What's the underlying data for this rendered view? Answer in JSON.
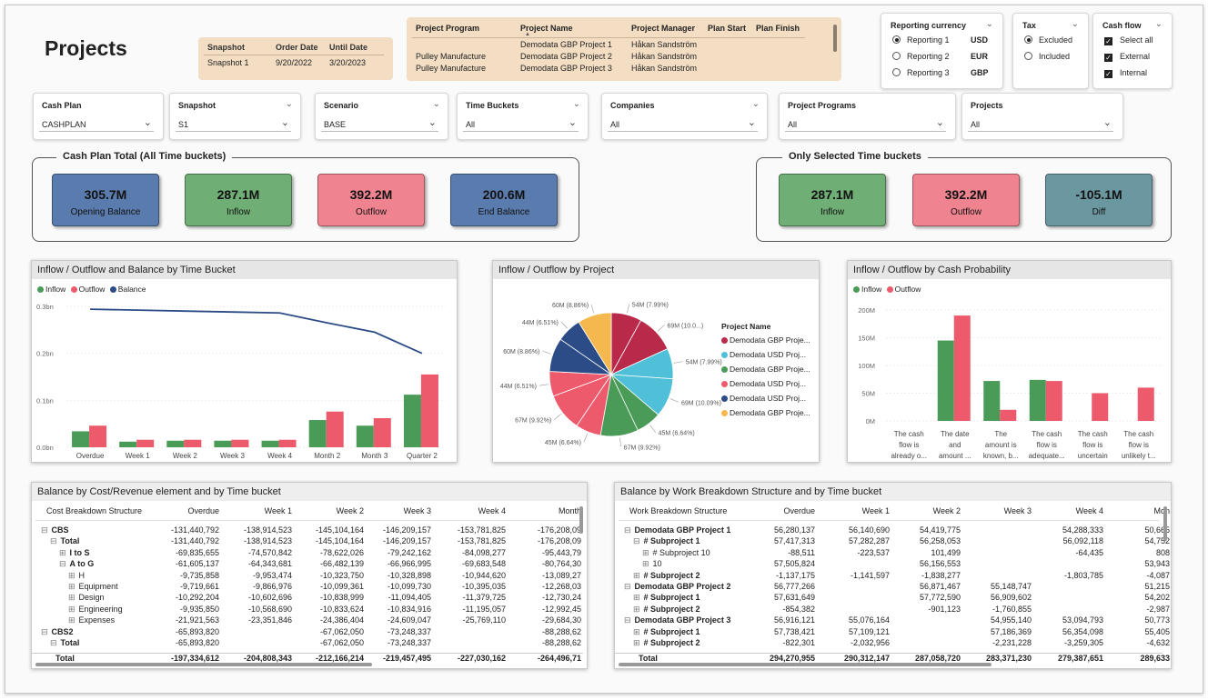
{
  "page_title": "Projects",
  "snapshot_table": {
    "headers": [
      "Snapshot",
      "Order Date",
      "Until Date"
    ],
    "row": [
      "Snapshot 1",
      "9/20/2022",
      "3/20/2023"
    ]
  },
  "project_table": {
    "headers": [
      "Project Program",
      "Project Name",
      "Project Manager",
      "Plan Start",
      "Plan Finish"
    ],
    "rows": [
      [
        "",
        "Demodata GBP Project 1",
        "Håkan Sandström",
        "",
        ""
      ],
      [
        "Pulley Manufacture",
        "Demodata GBP Project 2",
        "Håkan Sandström",
        "",
        ""
      ],
      [
        "Pulley Manufacture",
        "Demodata GBP Project 3",
        "Håkan Sandström",
        "",
        ""
      ]
    ]
  },
  "reporting_currency": {
    "title": "Reporting currency",
    "options": [
      {
        "label": "Reporting 1",
        "currency": "USD",
        "selected": true
      },
      {
        "label": "Reporting 2",
        "currency": "EUR",
        "selected": false
      },
      {
        "label": "Reporting 3",
        "currency": "GBP",
        "selected": false
      }
    ]
  },
  "tax": {
    "title": "Tax",
    "options": [
      {
        "label": "Excluded",
        "selected": true
      },
      {
        "label": "Included",
        "selected": false
      }
    ]
  },
  "cash_flow": {
    "title": "Cash flow",
    "options": [
      {
        "label": "Select all",
        "checked": true
      },
      {
        "label": "External",
        "checked": true
      },
      {
        "label": "Internal",
        "checked": true
      }
    ]
  },
  "filters": [
    {
      "label": "Cash Plan",
      "value": "CASHPLAN"
    },
    {
      "label": "Snapshot",
      "value": "S1"
    },
    {
      "label": "Scenario",
      "value": "BASE"
    },
    {
      "label": "Time Buckets",
      "value": "All"
    },
    {
      "label": "Companies",
      "value": "All"
    },
    {
      "label": "Project Programs",
      "value": "All"
    },
    {
      "label": "Projects",
      "value": "All"
    }
  ],
  "kpi_total": {
    "title": "Cash Plan Total (All Time buckets)",
    "cards": [
      {
        "value": "305.7M",
        "label": "Opening Balance"
      },
      {
        "value": "287.1M",
        "label": "Inflow"
      },
      {
        "value": "392.2M",
        "label": "Outflow"
      },
      {
        "value": "200.6M",
        "label": "End Balance"
      }
    ]
  },
  "kpi_selected": {
    "title": "Only Selected Time buckets",
    "cards": [
      {
        "value": "287.1M",
        "label": "Inflow"
      },
      {
        "value": "392.2M",
        "label": "Outflow"
      },
      {
        "value": "-105.1M",
        "label": "Diff"
      }
    ]
  },
  "colors": {
    "inflow": "#4a9a58",
    "outflow": "#ec5a6c",
    "balance": "#2b4c86"
  },
  "chart_data": [
    {
      "type": "bar",
      "title": "Inflow / Outflow and Balance by Time Bucket",
      "categories": [
        "Overdue",
        "Week 1",
        "Week 2",
        "Week 3",
        "Week 4",
        "Month 2",
        "Month 3",
        "Quarter 2"
      ],
      "series": [
        {
          "name": "Inflow",
          "type": "bar",
          "values": [
            0.034,
            0.012,
            0.014,
            0.014,
            0.014,
            0.058,
            0.046,
            0.112
          ]
        },
        {
          "name": "Outflow",
          "type": "bar",
          "values": [
            0.046,
            0.016,
            0.016,
            0.016,
            0.016,
            0.076,
            0.062,
            0.155
          ]
        },
        {
          "name": "Balance",
          "type": "line",
          "values": [
            0.294,
            0.292,
            0.29,
            0.288,
            0.286,
            0.265,
            0.245,
            0.2
          ]
        }
      ],
      "yticks": [
        "0.0bn",
        "0.1bn",
        "0.2bn",
        "0.3bn"
      ],
      "ylim": [
        0,
        0.3
      ]
    },
    {
      "type": "pie",
      "title": "Inflow / Outflow by Project",
      "legend_title": "Project Name",
      "legend": [
        "Demodata GBP Proje...",
        "Demodata USD Proj...",
        "Demodata GBP Proje...",
        "Demodata USD Proj...",
        "Demodata USD Proj...",
        "Demodata GBP Proje..."
      ],
      "legend_colors": [
        "#b8294a",
        "#4fc0d8",
        "#4a9a58",
        "#ec5a6c",
        "#2b4c86",
        "#f5b84f"
      ],
      "slices": [
        {
          "value": 54,
          "pct": "7.99%",
          "color": "#b8294a",
          "label": "54M (7.99%)"
        },
        {
          "value": 69,
          "pct": "10.0...",
          "color": "#b8294a",
          "label": "69M (10.0...)"
        },
        {
          "value": 54,
          "pct": "7.99%",
          "color": "#4fc0d8",
          "label": "54M (7.99%)"
        },
        {
          "value": 69,
          "pct": "10.09%",
          "color": "#4fc0d8",
          "label": "69M (10.09%)"
        },
        {
          "value": 45,
          "pct": "6.64%",
          "color": "#4a9a58",
          "label": "45M (6.64%)"
        },
        {
          "value": 67,
          "pct": "9.92%",
          "color": "#4a9a58",
          "label": "67M (9.92%)"
        },
        {
          "value": 45,
          "pct": "6.64%",
          "color": "#ec5a6c",
          "label": "45M (6.64%)"
        },
        {
          "value": 67,
          "pct": "9.92%",
          "color": "#ec5a6c",
          "label": "67M (9.92%)"
        },
        {
          "value": 44,
          "pct": "6.51%",
          "color": "#ec5a6c",
          "label": "44M (6.51%)"
        },
        {
          "value": 60,
          "pct": "8.86%",
          "color": "#2b4c86",
          "label": "60M (8.86%)"
        },
        {
          "value": 44,
          "pct": "6.51%",
          "color": "#2b4c86",
          "label": "44M (6.51%)"
        },
        {
          "value": 60,
          "pct": "8.86%",
          "color": "#f5b84f",
          "label": "60M (8.86%)"
        }
      ]
    },
    {
      "type": "bar",
      "title": "Inflow / Outflow by Cash Probability",
      "categories": [
        [
          "The cash",
          "flow is",
          "already o..."
        ],
        [
          "The date",
          "and",
          "amount ..."
        ],
        [
          "The",
          "amount is",
          "known, b..."
        ],
        [
          "The cash",
          "flow is",
          "adequate..."
        ],
        [
          "The cash",
          "flow is",
          "uncertain"
        ],
        [
          "The cash",
          "flow is",
          "unlikely t..."
        ]
      ],
      "series": [
        {
          "name": "Inflow",
          "values": [
            0,
            145,
            72,
            74,
            0,
            0
          ]
        },
        {
          "name": "Outflow",
          "values": [
            0,
            190,
            20,
            72,
            50,
            60
          ]
        }
      ],
      "yticks": [
        "0M",
        "50M",
        "100M",
        "150M",
        "200M"
      ],
      "ylim": [
        0,
        200
      ]
    }
  ],
  "cost_table": {
    "title": "Balance by Cost/Revenue element and by Time bucket",
    "headers": [
      "Cost Breakdown Structure",
      "Overdue",
      "Week 1",
      "Week 2",
      "Week 3",
      "Week 4",
      "Month"
    ],
    "rows": [
      {
        "label": "CBS",
        "indent": 0,
        "exp": "⊟",
        "bold": true,
        "vals": [
          "-131,440,792",
          "-138,914,523",
          "-145,104,164",
          "-146,209,157",
          "-153,781,825",
          "-176,208,09"
        ]
      },
      {
        "label": "Total",
        "indent": 1,
        "exp": "⊟",
        "bold": true,
        "vals": [
          "-131,440,792",
          "-138,914,523",
          "-145,104,164",
          "-146,209,157",
          "-153,781,825",
          "-176,208,09"
        ]
      },
      {
        "label": "I to S",
        "indent": 2,
        "exp": "⊞",
        "bold": true,
        "vals": [
          "-69,835,655",
          "-74,570,842",
          "-78,622,026",
          "-79,242,162",
          "-84,098,277",
          "-95,443,79"
        ]
      },
      {
        "label": "A to G",
        "indent": 2,
        "exp": "⊟",
        "bold": true,
        "vals": [
          "-61,605,137",
          "-64,343,681",
          "-66,482,139",
          "-66,966,995",
          "-69,683,548",
          "-80,764,30"
        ]
      },
      {
        "label": "H",
        "indent": 3,
        "exp": "⊞",
        "bold": false,
        "vals": [
          "-9,735,858",
          "-9,953,474",
          "-10,323,750",
          "-10,328,898",
          "-10,944,620",
          "-13,089,27"
        ]
      },
      {
        "label": "Equipment",
        "indent": 3,
        "exp": "⊞",
        "bold": false,
        "vals": [
          "-9,719,661",
          "-9,866,976",
          "-10,099,361",
          "-10,099,730",
          "-10,395,035",
          "-12,268,03"
        ]
      },
      {
        "label": "Design",
        "indent": 3,
        "exp": "⊞",
        "bold": false,
        "vals": [
          "-10,292,204",
          "-10,602,696",
          "-10,838,999",
          "-11,094,405",
          "-11,379,725",
          "-12,730,24"
        ]
      },
      {
        "label": "Engineering",
        "indent": 3,
        "exp": "⊞",
        "bold": false,
        "vals": [
          "-9,935,850",
          "-10,568,690",
          "-10,833,624",
          "-10,834,916",
          "-11,195,057",
          "-12,992,45"
        ]
      },
      {
        "label": "Expenses",
        "indent": 3,
        "exp": "⊞",
        "bold": false,
        "vals": [
          "-21,921,563",
          "-23,351,846",
          "-24,386,404",
          "-24,609,047",
          "-25,769,110",
          "-29,684,30"
        ]
      },
      {
        "label": "CBS2",
        "indent": 0,
        "exp": "⊟",
        "bold": true,
        "vals": [
          "-65,893,820",
          "",
          "-67,062,050",
          "-73,248,337",
          "",
          "-88,288,62"
        ]
      },
      {
        "label": "Total",
        "indent": 1,
        "exp": "⊟",
        "bold": true,
        "vals": [
          "-65,893,820",
          "",
          "-67,062,050",
          "-73,248,337",
          "",
          "-88,288,62"
        ]
      }
    ],
    "total": {
      "label": "Total",
      "vals": [
        "-197,334,612",
        "-204,808,343",
        "-212,166,214",
        "-219,457,495",
        "-227,030,162",
        "-264,496,71"
      ]
    }
  },
  "wbs_table": {
    "title": "Balance by Work Breakdown Structure and by Time bucket",
    "headers": [
      "Work Breakdown Structure",
      "Overdue",
      "Week 1",
      "Week 2",
      "Week 3",
      "Week 4",
      "Mon"
    ],
    "rows": [
      {
        "label": "Demodata GBP Project 1",
        "indent": 0,
        "exp": "⊟",
        "bold": true,
        "vals": [
          "56,280,137",
          "56,140,690",
          "54,419,775",
          "",
          "54,288,333",
          "50,665"
        ]
      },
      {
        "label": "# Subproject 1",
        "indent": 1,
        "exp": "⊟",
        "bold": true,
        "vals": [
          "57,417,313",
          "57,282,287",
          "56,258,053",
          "",
          "56,092,118",
          "54,752"
        ]
      },
      {
        "label": "# Subproject 10",
        "indent": 2,
        "exp": "⊞",
        "bold": false,
        "vals": [
          "-88,511",
          "-223,537",
          "101,499",
          "",
          "-64,435",
          "808"
        ]
      },
      {
        "label": "10",
        "indent": 2,
        "exp": "⊞",
        "bold": false,
        "vals": [
          "57,505,824",
          "",
          "56,156,553",
          "",
          "",
          "53,943"
        ]
      },
      {
        "label": "# Subproject 2",
        "indent": 1,
        "exp": "⊞",
        "bold": true,
        "vals": [
          "-1,137,175",
          "-1,141,597",
          "-1,838,277",
          "",
          "-1,803,785",
          "-4,087"
        ]
      },
      {
        "label": "Demodata GBP Project 2",
        "indent": 0,
        "exp": "⊟",
        "bold": true,
        "vals": [
          "56,777,266",
          "",
          "56,871,467",
          "55,148,747",
          "",
          "51,215"
        ]
      },
      {
        "label": "# Subproject 1",
        "indent": 1,
        "exp": "⊞",
        "bold": true,
        "vals": [
          "57,631,649",
          "",
          "57,772,590",
          "56,909,602",
          "",
          "54,202"
        ]
      },
      {
        "label": "# Subproject 2",
        "indent": 1,
        "exp": "⊞",
        "bold": true,
        "vals": [
          "-854,382",
          "",
          "-901,123",
          "-1,760,855",
          "",
          "-2,987"
        ]
      },
      {
        "label": "Demodata GBP Project 3",
        "indent": 0,
        "exp": "⊟",
        "bold": true,
        "vals": [
          "56,916,121",
          "55,076,164",
          "",
          "54,955,140",
          "53,094,793",
          "50,773"
        ]
      },
      {
        "label": "# Subproject 1",
        "indent": 1,
        "exp": "⊞",
        "bold": true,
        "vals": [
          "57,738,421",
          "57,109,121",
          "",
          "57,186,369",
          "56,354,098",
          "55,405"
        ]
      },
      {
        "label": "# Subproject 2",
        "indent": 1,
        "exp": "⊞",
        "bold": true,
        "vals": [
          "-822,301",
          "-2,032,956",
          "",
          "-2,231,228",
          "-3,259,305",
          "-4,632"
        ]
      }
    ],
    "total": {
      "label": "Total",
      "vals": [
        "294,270,955",
        "290,312,147",
        "287,058,720",
        "283,371,230",
        "279,387,651",
        "289,633"
      ]
    }
  }
}
